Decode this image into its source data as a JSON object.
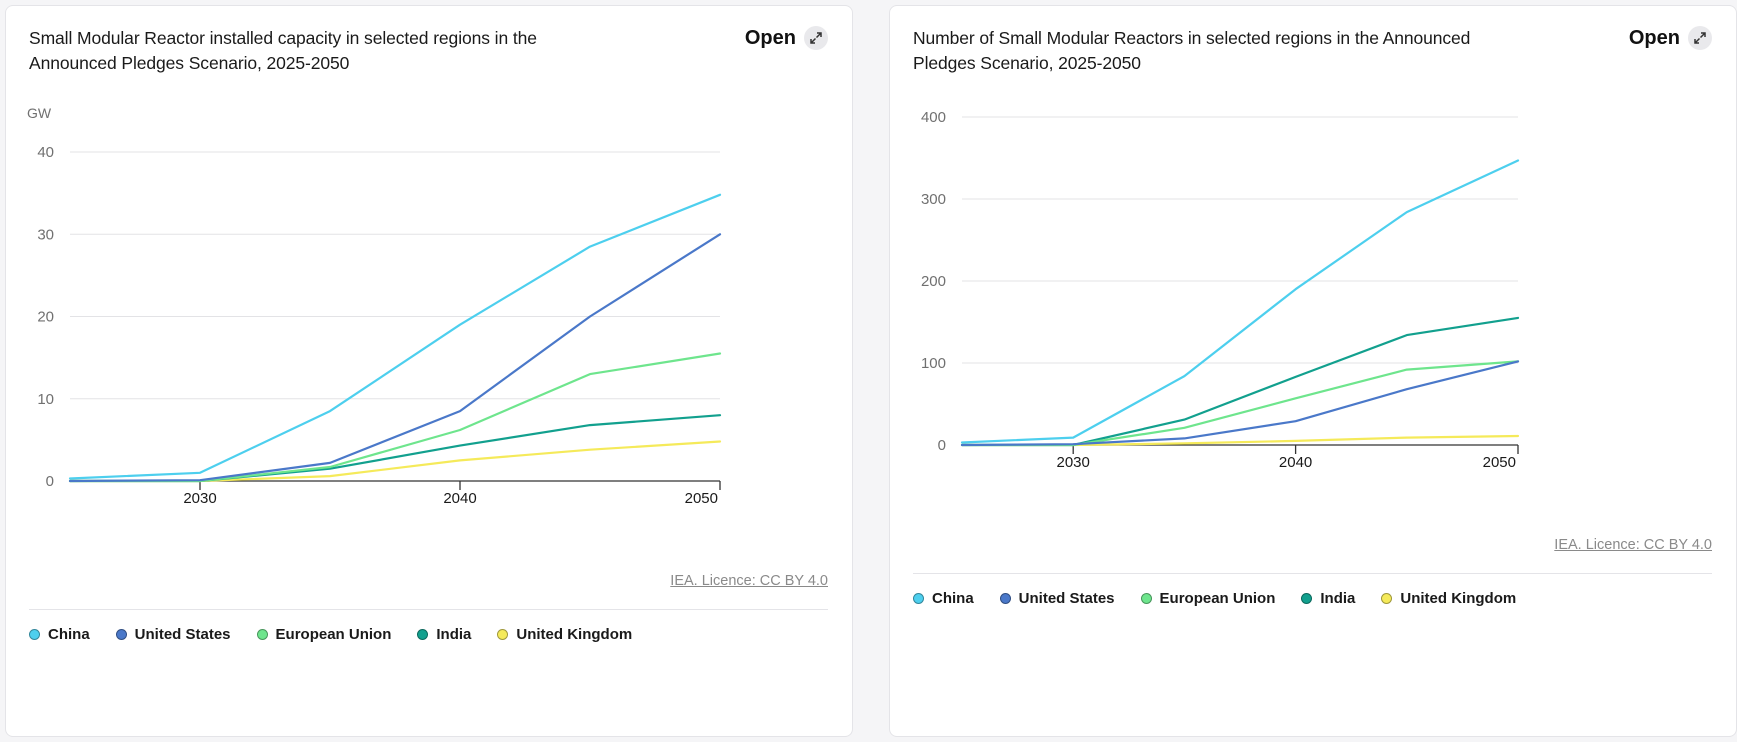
{
  "colors": {
    "china": "#4dcfee",
    "united_states": "#4a78c9",
    "european_union": "#6ee58d",
    "india": "#12a08e",
    "united_kingdom": "#f5ea5a"
  },
  "cards": [
    {
      "title": "Small Modular Reactor installed capacity in selected regions in the Announced Pledges Scenario, 2025-2050",
      "open_label": "Open",
      "open_icon": "expand-icon",
      "licence": "IEA. Licence: CC BY 4.0",
      "legend": [
        "China",
        "United States",
        "European Union",
        "India",
        "United Kingdom"
      ]
    },
    {
      "title": "Number of Small Modular Reactors in selected regions in the Announced Pledges Scenario, 2025-2050",
      "open_label": "Open",
      "open_icon": "expand-icon",
      "licence": "IEA. Licence: CC BY 4.0",
      "legend": [
        "China",
        "United States",
        "European Union",
        "India",
        "United Kingdom"
      ]
    }
  ],
  "chart_data": [
    {
      "type": "line",
      "title": "Small Modular Reactor installed capacity in selected regions in the Announced Pledges Scenario, 2025-2050",
      "ylabel": "GW",
      "xlabel": "",
      "x": [
        2025,
        2030,
        2035,
        2040,
        2045,
        2050
      ],
      "x_ticks": [
        2030,
        2040,
        2050
      ],
      "y_ticks": [
        0,
        10,
        20,
        30,
        40
      ],
      "ylim": [
        0,
        40
      ],
      "xlim": [
        2025,
        2050
      ],
      "grid": true,
      "legend_position": "bottom",
      "series": [
        {
          "name": "China",
          "color_key": "china",
          "values": [
            0.3,
            1.0,
            8.5,
            19.0,
            28.5,
            34.8
          ]
        },
        {
          "name": "United States",
          "color_key": "united_states",
          "values": [
            0.0,
            0.1,
            2.2,
            8.5,
            20.0,
            30.0
          ]
        },
        {
          "name": "European Union",
          "color_key": "european_union",
          "values": [
            0.0,
            0.0,
            1.7,
            6.2,
            13.0,
            15.5
          ]
        },
        {
          "name": "India",
          "color_key": "india",
          "values": [
            0.0,
            0.0,
            1.5,
            4.3,
            6.8,
            8.0
          ]
        },
        {
          "name": "United Kingdom",
          "color_key": "united_kingdom",
          "values": [
            0.0,
            0.0,
            0.6,
            2.5,
            3.8,
            4.8
          ]
        }
      ]
    },
    {
      "type": "line",
      "title": "Number of Small Modular Reactors in selected regions in the Announced Pledges Scenario, 2025-2050",
      "ylabel": "",
      "xlabel": "",
      "x": [
        2025,
        2030,
        2035,
        2040,
        2045,
        2050
      ],
      "x_ticks": [
        2030,
        2040,
        2050
      ],
      "y_ticks": [
        0,
        100,
        200,
        300,
        400
      ],
      "ylim": [
        0,
        400
      ],
      "xlim": [
        2025,
        2050
      ],
      "grid": true,
      "legend_position": "bottom",
      "series": [
        {
          "name": "China",
          "color_key": "china",
          "values": [
            3,
            9,
            84,
            190,
            284,
            347
          ]
        },
        {
          "name": "United States",
          "color_key": "united_states",
          "values": [
            0,
            1,
            8,
            29,
            68,
            102
          ]
        },
        {
          "name": "European Union",
          "color_key": "european_union",
          "values": [
            0,
            0,
            21,
            57,
            92,
            102
          ]
        },
        {
          "name": "India",
          "color_key": "india",
          "values": [
            0,
            0,
            31,
            83,
            134,
            155
          ]
        },
        {
          "name": "United Kingdom",
          "color_key": "united_kingdom",
          "values": [
            0,
            0,
            2,
            5,
            9,
            11
          ]
        }
      ]
    }
  ]
}
